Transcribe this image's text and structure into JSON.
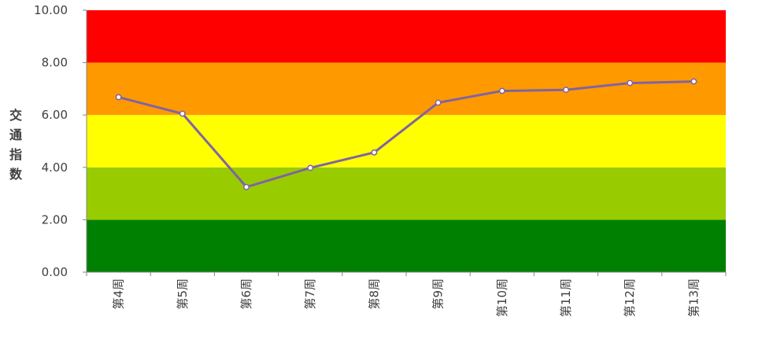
{
  "chart_data": {
    "type": "line",
    "title": "",
    "xlabel": "",
    "ylabel": "交通指数",
    "ylim": [
      0,
      10
    ],
    "y_ticks": [
      "0.00",
      "2.00",
      "4.00",
      "6.00",
      "8.00",
      "10.00"
    ],
    "categories": [
      "第4周",
      "第5周",
      "第6周",
      "第7周",
      "第8周",
      "第9周",
      "第10周",
      "第11周",
      "第12周",
      "第13周"
    ],
    "series": [
      {
        "values": [
          6.68,
          6.05,
          3.25,
          3.98,
          4.57,
          6.47,
          6.92,
          6.96,
          7.22,
          7.28
        ]
      }
    ],
    "bands": [
      {
        "from": 0,
        "to": 2,
        "color": "#008000"
      },
      {
        "from": 2,
        "to": 4,
        "color": "#99CC00"
      },
      {
        "from": 4,
        "to": 6,
        "color": "#FFFF00"
      },
      {
        "from": 6,
        "to": 8,
        "color": "#FF9900"
      },
      {
        "from": 8,
        "to": 10,
        "color": "#FF0000"
      }
    ],
    "line_color": "#8064A2",
    "grid": false,
    "legend": "none"
  }
}
